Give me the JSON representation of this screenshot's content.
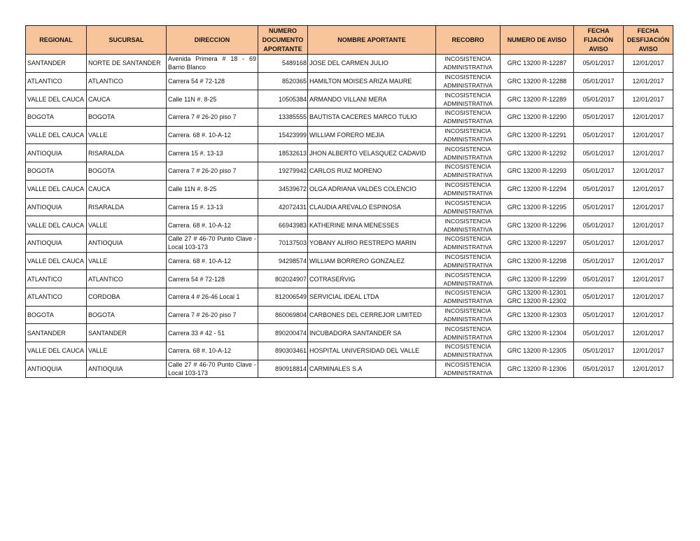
{
  "headers": [
    "REGIONAL",
    "SUCURSAL",
    "DIRECCION",
    "NUMERO DOCUMENTO APORTANTE",
    "NOMBRE APORTANTE",
    "RECOBRO",
    "NUMERO DE AVISO",
    "FECHA FIJACIÓN AVISO",
    "FECHA DESFIJACIÓN AVISO"
  ],
  "rows": [
    [
      "SANTANDER",
      "NORTE DE SANTANDER",
      "Avenida Primera # 18 - 69 Barrio Blanco",
      "5489168",
      "JOSE DEL CARMEN JULIO",
      "INCOSISTENCIA ADMINISTRATIVA",
      "GRC 13200 R-12287",
      "05/01/2017",
      "12/01/2017"
    ],
    [
      "ATLANTICO",
      "ATLANTICO",
      " Carrera 54 # 72-128",
      "8520365",
      "HAMILTON MOISES ARIZA MAURE",
      "INCOSISTENCIA ADMINISTRATIVA",
      "GRC 13200 R-12288",
      "05/01/2017",
      "12/01/2017"
    ],
    [
      "VALLE DEL CAUCA",
      "CAUCA",
      "Calle 11N #. 8-25",
      "10505384",
      "ARMANDO VILLANI MERA",
      "INCOSISTENCIA ADMINISTRATIVA",
      "GRC 13200 R-12289",
      "05/01/2017",
      "12/01/2017"
    ],
    [
      "BOGOTA",
      "BOGOTA",
      "Carrera 7 # 26-20 piso 7",
      "13385555",
      "BAUTISTA CACERES MARCO TULIO",
      "INCOSISTENCIA ADMINISTRATIVA",
      "GRC 13200 R-12290",
      "05/01/2017",
      "12/01/2017"
    ],
    [
      "VALLE DEL CAUCA",
      "VALLE",
      "Carrera. 68 #. 10-A-12",
      "15423999",
      "WILLIAM FORERO MEJIA",
      "INCOSISTENCIA ADMINISTRATIVA",
      "GRC 13200 R-12291",
      "05/01/2017",
      "12/01/2017"
    ],
    [
      "ANTIOQUIA",
      "RISARALDA",
      "Carrera 15 #. 13-13",
      "18532613",
      "JHON ALBERTO VELASQUEZ CADAVID",
      "INCOSISTENCIA ADMINISTRATIVA",
      "GRC 13200 R-12292",
      "05/01/2017",
      "12/01/2017"
    ],
    [
      "BOGOTA",
      "BOGOTA",
      "Carrera 7 # 26-20 piso 7",
      "19279942",
      "CARLOS RUIZ MORENO",
      "INCOSISTENCIA ADMINISTRATIVA",
      "GRC 13200 R-12293",
      "05/01/2017",
      "12/01/2017"
    ],
    [
      "VALLE DEL CAUCA",
      "CAUCA",
      "Calle 11N #. 8-25",
      "34539672",
      "OLGA ADRIANA VALDES COLENCIO",
      "INCOSISTENCIA ADMINISTRATIVA",
      "GRC 13200 R-12294",
      "05/01/2017",
      "12/01/2017"
    ],
    [
      "ANTIOQUIA",
      "RISARALDA",
      "Carrera 15 #. 13-13",
      "42072431",
      "CLAUDIA AREVALO ESPINOSA",
      "INCOSISTENCIA ADMINISTRATIVA",
      "GRC 13200 R-12295",
      "05/01/2017",
      "12/01/2017"
    ],
    [
      "VALLE DEL CAUCA",
      "VALLE",
      "Carrera. 68 #. 10-A-12",
      "66943983",
      "KATHERINE MINA MENESSES",
      "INCOSISTENCIA ADMINISTRATIVA",
      "GRC 13200 R-12296",
      "05/01/2017",
      "12/01/2017"
    ],
    [
      "ANTIOQUIA",
      "ANTIOQUIA",
      "Calle 27 # 46-70 Punto Clave - Local 103-173",
      "70137503",
      "YOBANY ALIRIO RESTREPO MARIN",
      "INCOSISTENCIA ADMINISTRATIVA",
      "GRC 13200 R-12297",
      "05/01/2017",
      "12/01/2017"
    ],
    [
      "VALLE DEL CAUCA",
      "VALLE",
      "Carrera. 68 #. 10-A-12",
      "94298574",
      "WILLIAM BORRERO GONZALEZ",
      "INCOSISTENCIA ADMINISTRATIVA",
      "GRC 13200 R-12298",
      "05/01/2017",
      "12/01/2017"
    ],
    [
      "ATLANTICO",
      "ATLANTICO",
      " Carrera 54 # 72-128",
      "802024907",
      "COTRASERVIG",
      "INCOSISTENCIA ADMINISTRATIVA",
      "GRC 13200 R-12299",
      "05/01/2017",
      "12/01/2017"
    ],
    [
      "ATLANTICO",
      "CORDOBA",
      "Carrera 4 # 26-46 Local 1",
      "812006549",
      "SERVICIAL IDEAL LTDA",
      "INCOSISTENCIA ADMINISTRATIVA",
      "GRC 13200 R-12301 GRC 13200 R-12302",
      "05/01/2017",
      "12/01/2017"
    ],
    [
      "BOGOTA",
      "BOGOTA",
      "Carrera 7 # 26-20 piso 7",
      "860069804",
      "CARBONES DEL CERREJOR LIMITED",
      "INCOSISTENCIA ADMINISTRATIVA",
      "GRC 13200 R-12303",
      "05/01/2017",
      "12/01/2017"
    ],
    [
      "SANTANDER",
      "SANTANDER",
      "Carrera 33 # 42 - 51",
      "890200474",
      "INCUBADORA SANTANDER SA",
      "INCOSISTENCIA ADMINISTRATIVA",
      "GRC 13200 R-12304",
      "05/01/2017",
      "12/01/2017"
    ],
    [
      "VALLE DEL CAUCA",
      "VALLE",
      "Carrera. 68 #. 10-A-12",
      "890303461",
      "HOSPITAL UNIVERSIDAD DEL VALLE",
      "INCOSISTENCIA ADMINISTRATIVA",
      "GRC 13200 R-12305",
      "05/01/2017",
      "12/01/2017"
    ],
    [
      "ANTIOQUIA",
      "ANTIOQUIA",
      "Calle 27 # 46-70 Punto Clave - Local 103-173",
      "890918814",
      "CARMINALES S.A",
      "INCOSISTENCIA ADMINISTRATIVA",
      "GRC 13200 R-12306",
      "05/01/2017",
      "12/01/2017"
    ]
  ]
}
